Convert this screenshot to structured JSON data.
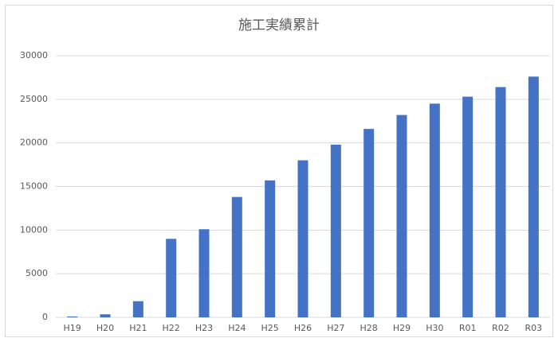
{
  "chart_data": {
    "type": "bar",
    "title": "施工実績累計",
    "categories": [
      "H19",
      "H20",
      "H21",
      "H22",
      "H23",
      "H24",
      "H25",
      "H26",
      "H27",
      "H28",
      "H29",
      "H30",
      "R01",
      "R02",
      "R03"
    ],
    "values": [
      100,
      350,
      1850,
      9000,
      10100,
      13800,
      15700,
      18000,
      19800,
      21600,
      23200,
      24500,
      25300,
      26400,
      27600
    ],
    "color": "#4472c4",
    "ylim": [
      0,
      30000
    ],
    "yticks": [
      0,
      5000,
      10000,
      15000,
      20000,
      25000,
      30000
    ],
    "grid": true
  }
}
